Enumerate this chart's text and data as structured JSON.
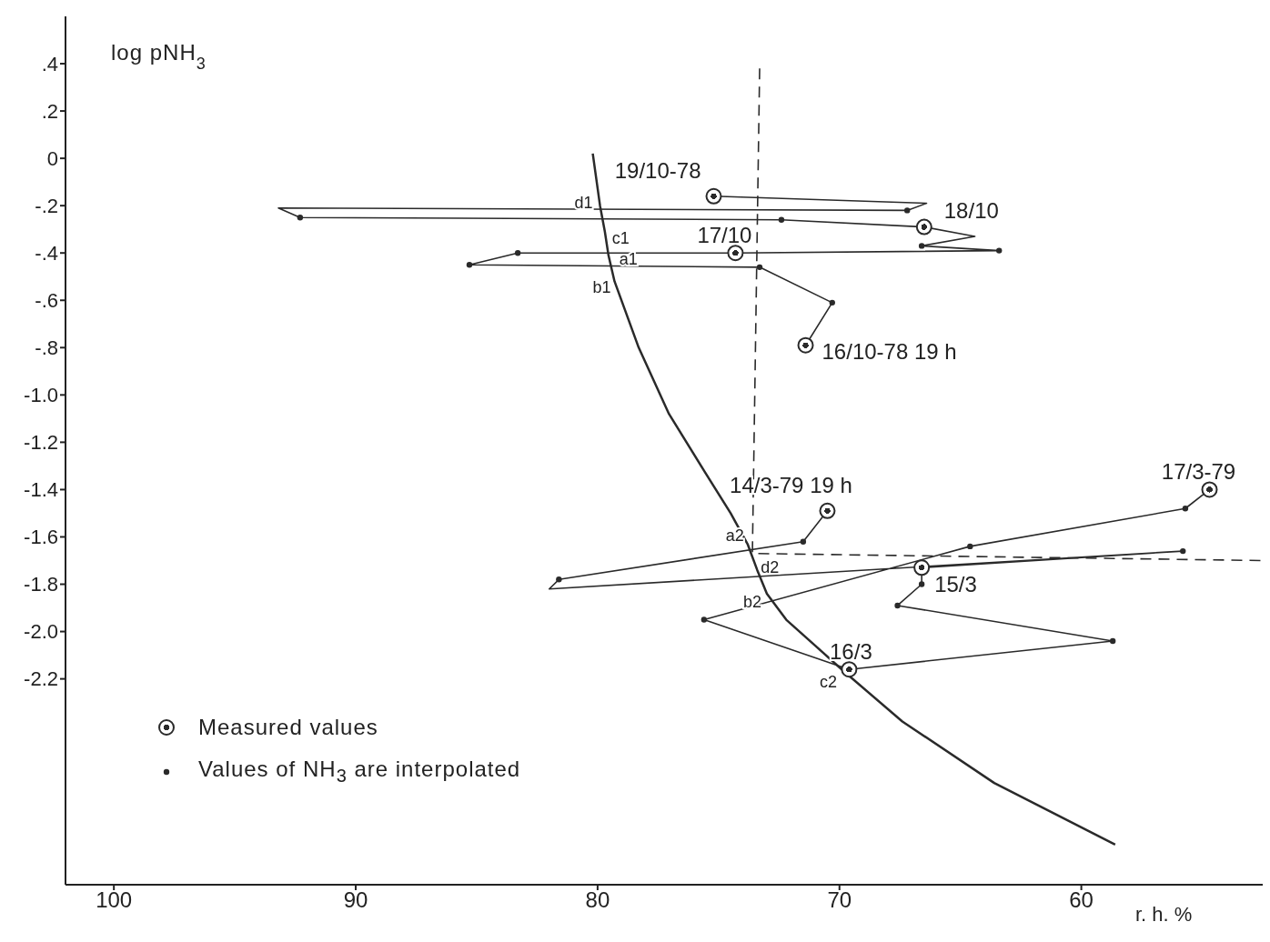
{
  "chart_data": {
    "type": "line",
    "xlabel": "r. h. %",
    "ylabel": "log pNH$_{3}$",
    "xlim": [
      102,
      52.5
    ],
    "xticks": [
      100,
      90,
      80,
      70,
      60
    ],
    "ylim": [
      -3.07,
      0.6
    ],
    "yticks": [
      {
        "value": 0.4,
        "label": ".4"
      },
      {
        "value": 0.2,
        "label": ".2"
      },
      0,
      {
        "value": -0.2,
        "label": "-.2"
      },
      {
        "value": -0.4,
        "label": "-.4"
      },
      {
        "value": -0.6,
        "label": "-.6"
      },
      {
        "value": -0.8,
        "label": "-.8"
      },
      {
        "value": -1,
        "label": "-1.0"
      },
      -1.2,
      -1.4,
      -1.6,
      -1.8,
      {
        "value": -2,
        "label": "-2.0"
      },
      -2.2
    ],
    "grid": false,
    "legend": "bottom left",
    "series": [
      {
        "color": "#2a2a2a",
        "line_style": "solid",
        "marker": "none",
        "x": [
          80.2,
          79.9,
          79.7,
          79.55,
          79.3,
          78.3,
          77.05,
          75.6,
          74.5,
          73.8,
          73.4,
          73,
          72.2,
          71,
          69.8,
          67.4,
          63.6,
          58.6
        ],
        "values": [
          0.02,
          -0.2,
          -0.31,
          -0.41,
          -0.52,
          -0.8,
          -1.08,
          -1.32,
          -1.5,
          -1.63,
          -1.74,
          -1.84,
          -1.95,
          -2.06,
          -2.17,
          -2.38,
          -2.64,
          -2.9
        ]
      },
      {
        "color": "#2a2a2a",
        "line_style": "dashed",
        "marker": "none",
        "x": [
          73.3,
          73.6,
          52.5
        ],
        "values": [
          0.38,
          -1.67,
          -1.7
        ]
      },
      {
        "color": "#2a2a2a",
        "line_style": "solid",
        "marker": "none",
        "x": [
          71.4,
          70.3,
          73.3,
          85.3,
          83.3,
          74.3,
          63.4,
          66.6,
          64.4,
          66.5,
          72.4,
          92.3,
          93.2,
          67.2,
          66.4,
          75.2
        ],
        "values": [
          -0.79,
          -0.61,
          -0.46,
          -0.45,
          -0.4,
          -0.4,
          -0.39,
          -0.37,
          -0.33,
          -0.29,
          -0.26,
          -0.25,
          -0.21,
          -0.22,
          -0.19,
          -0.16
        ]
      },
      {
        "color": "#2a2a2a",
        "line_style": "solid",
        "marker": "none",
        "x": [
          70.5,
          71.5,
          81.6,
          82,
          55.8,
          66.6,
          66.6,
          67.6,
          58.7,
          69.6,
          75.6,
          64.6,
          55.7,
          54.7
        ],
        "values": [
          -1.49,
          -1.62,
          -1.78,
          -1.82,
          -1.66,
          -1.73,
          -1.8,
          -1.89,
          -2.04,
          -2.16,
          -1.95,
          -1.64,
          -1.48,
          -1.4
        ]
      },
      {
        "type": "scatter",
        "name": "Measured values",
        "color": "#2a2a2a",
        "marker": "circle",
        "x": [
          71.4,
          74.3,
          66.5,
          75.2,
          70.5,
          66.6,
          69.6,
          54.7
        ],
        "values": [
          -0.79,
          -0.4,
          -0.29,
          -0.16,
          -1.49,
          -1.73,
          -2.16,
          -1.4
        ]
      },
      {
        "type": "scatter",
        "name": "Values of NH$_{3}$ are interpolated",
        "color": "#2a2a2a",
        "marker": "circle",
        "x": [
          70.3,
          73.3,
          85.3,
          83.3,
          63.4,
          66.6,
          72.4,
          92.3,
          67.2,
          71.5,
          81.6,
          55.8,
          66.6,
          67.6,
          58.7,
          75.6,
          64.6,
          55.7
        ],
        "values": [
          -0.61,
          -0.46,
          -0.45,
          -0.4,
          -0.39,
          -0.37,
          -0.26,
          -0.25,
          -0.22,
          -1.62,
          -1.78,
          -1.66,
          -1.8,
          -1.89,
          -2.04,
          -1.95,
          -1.64,
          -1.48
        ]
      }
    ],
    "annotations": [
      {
        "text": "19/10-78",
        "x": 75.2,
        "y": -0.16
      },
      {
        "text": "18/10",
        "x": 66.5,
        "y": -0.29
      },
      {
        "text": "17/10",
        "x": 74.3,
        "y": -0.4
      },
      {
        "text": "16/10-78   19 h",
        "x": 71.4,
        "y": -0.79
      },
      {
        "text": "14/3-79   19 h",
        "x": 70.5,
        "y": -1.49
      },
      {
        "text": "17/3-79",
        "x": 54.7,
        "y": -1.4
      },
      {
        "text": "15/3",
        "x": 66.6,
        "y": -1.73
      },
      {
        "text": "16/3",
        "x": 69.6,
        "y": -2.16
      },
      {
        "text": "d1",
        "x": 79.9,
        "y": -0.2
      },
      {
        "text": "c1",
        "x": 79.7,
        "y": -0.31
      },
      {
        "text": "a1",
        "x": 79.55,
        "y": -0.41
      },
      {
        "text": "b1",
        "x": 79.3,
        "y": -0.52
      },
      {
        "text": "a2",
        "x": 73.8,
        "y": -1.63
      },
      {
        "text": "d2",
        "x": 73.4,
        "y": -1.74
      },
      {
        "text": "b2",
        "x": 73,
        "y": -1.84
      },
      {
        "text": "c2",
        "x": 69.8,
        "y": -2.17
      }
    ]
  }
}
